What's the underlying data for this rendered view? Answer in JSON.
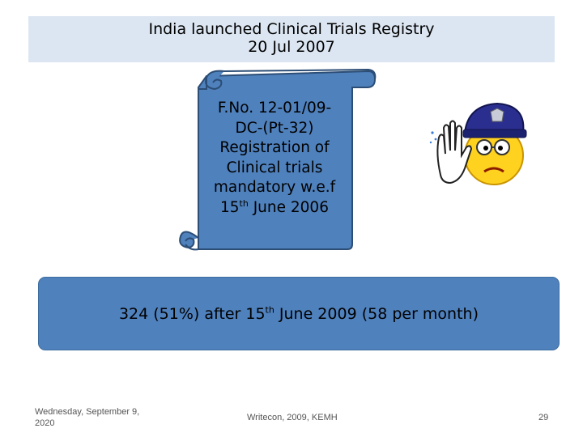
{
  "header": {
    "title_line1": "India launched Clinical Trials Registry",
    "title_line2": "20 Jul 2007"
  },
  "scroll": {
    "line1": "F.No. 12-01/09-",
    "line2": "DC-(Pt-32)",
    "line3": "Registration of",
    "line4": "Clinical trials",
    "line5": "mandatory w.e.f",
    "line6_pre": "15",
    "line6_sup": "th",
    "line6_post": " June 2006"
  },
  "stat": {
    "pre": "324 (51%) after 15",
    "sup": "th",
    "post": " June 2009 (58 per month)"
  },
  "footer": {
    "date": "Wednesday, September 9, 2020",
    "center": "Writecon, 2009, KEMH",
    "page": "29"
  },
  "icons": {
    "police": "police-stop-icon",
    "scroll": "scroll-banner-icon"
  },
  "colors": {
    "title_bg": "#dce6f2",
    "scroll_fill": "#4f81bd",
    "stat_fill": "#4f81bd"
  }
}
